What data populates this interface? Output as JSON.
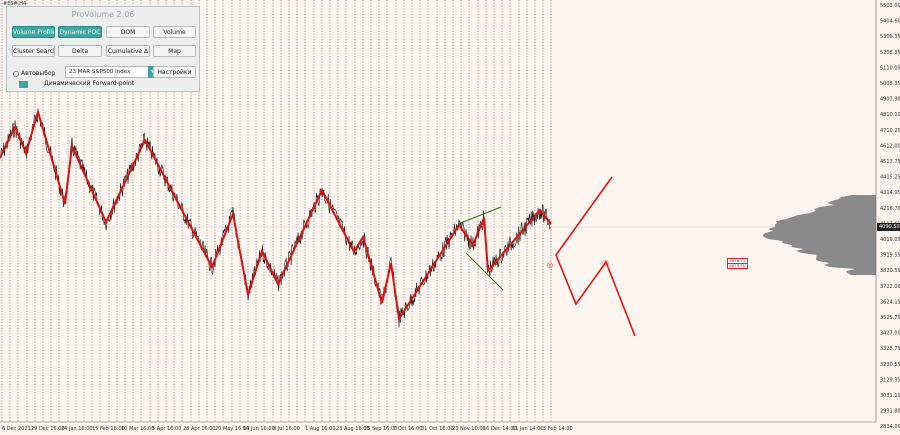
{
  "symbol": "#ES#,H4",
  "panel": {
    "title": "ProVolume 2.06",
    "buttons": [
      {
        "label": "Volume Profile",
        "active": true
      },
      {
        "label": "Dynamic POC",
        "active": true
      },
      {
        "label": "DOM",
        "active": false
      },
      {
        "label": "Volume",
        "active": false
      },
      {
        "label": "Cluster Search",
        "active": false
      },
      {
        "label": "Delta",
        "active": false
      },
      {
        "label": "Cumulative Δ",
        "active": false
      },
      {
        "label": "Map",
        "active": false
      }
    ],
    "auto_label": "Автовыбор",
    "instrument_value": "23 MAR S&P500 Index",
    "settings_button": "Настройки",
    "forward_point_label": "Динамический Forward-point",
    "dropdown_icon": "chevron-down-icon"
  },
  "price_axis": {
    "labels": [
      "5503.00",
      "5404.60",
      "5306.35",
      "5208.35",
      "5110.05",
      "5008.35",
      "4907.90",
      "4810.10",
      "4710.25",
      "4612.00",
      "4513.75",
      "4415.25",
      "4314.95",
      "4216.70",
      "4117.65",
      "4019.05",
      "3919.55",
      "3820.55",
      "3722.00",
      "3624.15",
      "3525.75",
      "3427.00",
      "3328.75",
      "3230.55",
      "3129.35",
      "3031.10",
      "2931.80",
      "2834.00"
    ],
    "current_price": "4090.50",
    "current_price_color": "#111111"
  },
  "time_axis": {
    "labels": [
      "6 Dec 2021",
      "29 Dec 16:00",
      "24 Jan 16:00",
      "15 Feb 16:00",
      "10 Mar 16:00",
      "5 Apr 16:00",
      "28 Apr 16:00",
      "20 May 16:00",
      "14 Jun 16:00",
      "8 Jul 16:00",
      "1 Aug 16:00",
      "23 Aug 16:00",
      "15 Sep 16:00",
      "7 Oct 16:00",
      "31 Oct 16:00",
      "23 Nov 10:00",
      "16 Dec 14:00",
      "11 Jan 14:00",
      "3 Feb 14:00"
    ]
  },
  "annotations": {
    "wave_marks": [
      "◎",
      "ⓑ"
    ],
    "red_tags": [
      "3878.75",
      "3874.50"
    ]
  },
  "colors": {
    "background": "#fdf5ef",
    "zigzag": "#dd1111",
    "forecast": "#ee1111",
    "channel": "#1a7a1a",
    "profile": "#888888",
    "accent": "#3fa7a1"
  }
}
